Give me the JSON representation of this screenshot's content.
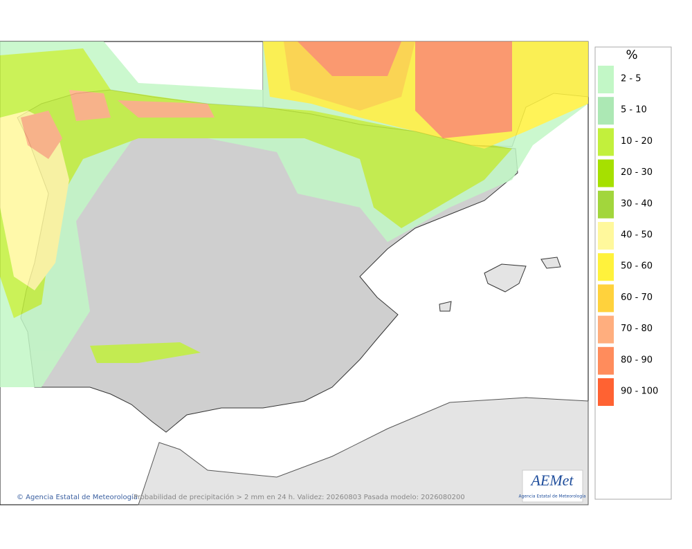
{
  "map": {
    "caption": "Probabilidad de precipitación > 2 mm en 24 h. Validez: 20260803 Pasada modelo: 2026080200",
    "credit": "© Agencia Estatal de Meteorología",
    "logo": {
      "name": "AEMet",
      "subtitle": "Agencia Estatal de Meteorología"
    }
  },
  "legend": {
    "unit": "%",
    "items": [
      {
        "label": "2 - 5",
        "color": "#c2f7c6"
      },
      {
        "label": "5 - 10",
        "color": "#ace8b4"
      },
      {
        "label": "10 - 20",
        "color": "#c2f03c"
      },
      {
        "label": "20 - 30",
        "color": "#a6e000"
      },
      {
        "label": "30 - 40",
        "color": "#a2d63c"
      },
      {
        "label": "40 - 50",
        "color": "#fff89c"
      },
      {
        "label": "50 - 60",
        "color": "#fff23c"
      },
      {
        "label": "60 - 70",
        "color": "#ffd23c"
      },
      {
        "label": "70 - 80",
        "color": "#ffae7e"
      },
      {
        "label": "80 - 90",
        "color": "#ff8c5c"
      },
      {
        "label": "90 - 100",
        "color": "#ff6232"
      }
    ]
  }
}
